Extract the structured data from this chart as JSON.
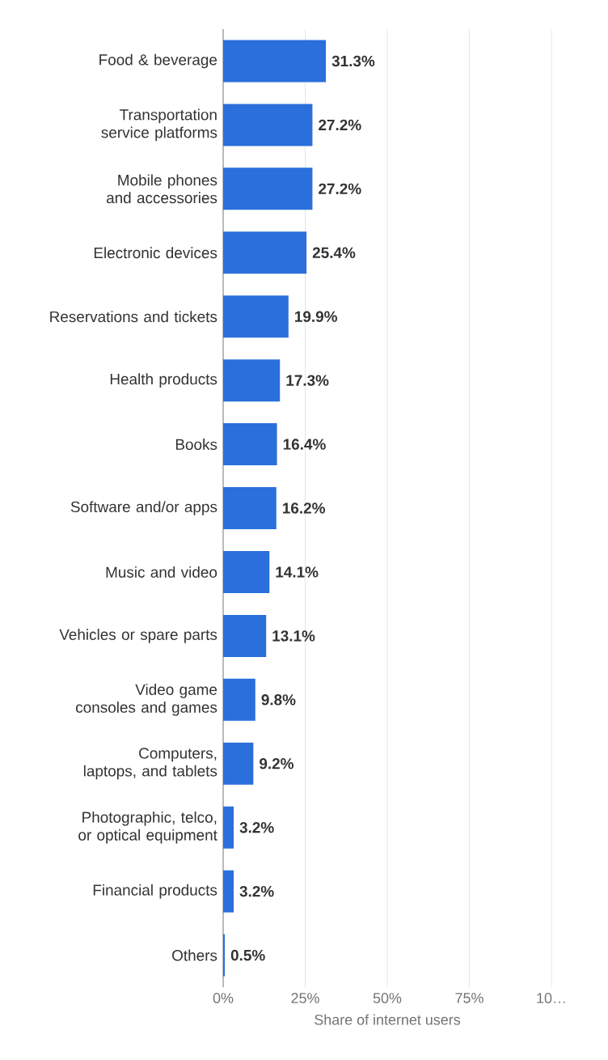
{
  "chart_data": {
    "type": "bar",
    "orientation": "horizontal",
    "xlabel": "Share of internet users",
    "categories": [
      "Food & beverage",
      "Transportation service platforms",
      "Mobile phones and accessories",
      "Electronic devices",
      "Reservations and tickets",
      "Health products",
      "Books",
      "Software and/or apps",
      "Music and video",
      "Vehicles or spare parts",
      "Video game consoles and games",
      "Computers, laptops, and tablets",
      "Photographic, telco, or optical equipment",
      "Financial products",
      "Others"
    ],
    "values": [
      31.3,
      27.2,
      27.2,
      25.4,
      19.9,
      17.3,
      16.4,
      16.2,
      14.1,
      13.1,
      9.8,
      9.2,
      3.2,
      3.2,
      0.5
    ],
    "value_labels": [
      "31.3%",
      "27.2%",
      "27.2%",
      "25.4%",
      "19.9%",
      "17.3%",
      "16.4%",
      "16.2%",
      "14.1%",
      "13.1%",
      "9.8%",
      "9.2%",
      "3.2%",
      "3.2%",
      "0.5%"
    ],
    "color": "#2a6fdb",
    "xlim": [
      0,
      100
    ],
    "xticks": [
      {
        "value": 0,
        "label": "0%"
      },
      {
        "value": 25,
        "label": "25%"
      },
      {
        "value": 50,
        "label": "50%"
      },
      {
        "value": 75,
        "label": "75%"
      },
      {
        "value": 100,
        "label": "10…"
      }
    ],
    "grid": "x"
  }
}
